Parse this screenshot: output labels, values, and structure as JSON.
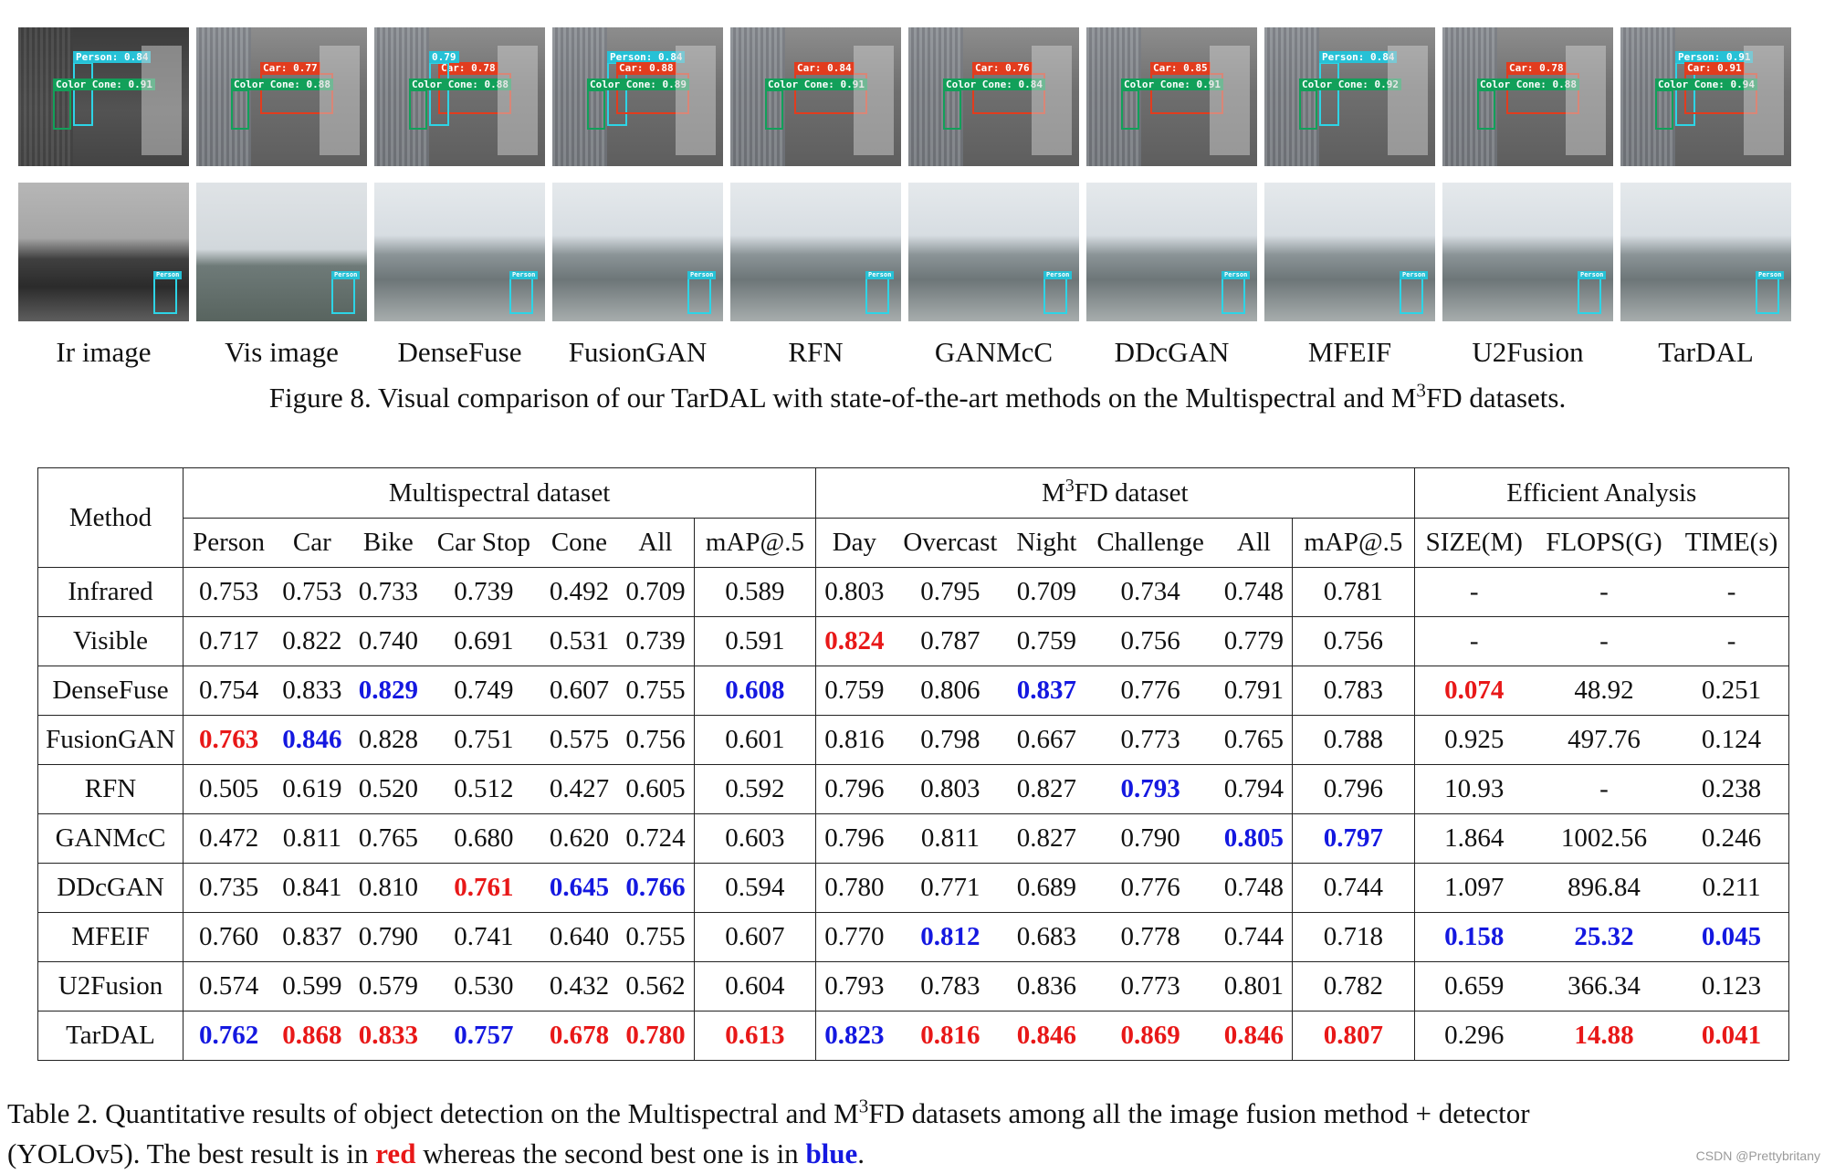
{
  "figure": {
    "method_labels": [
      "Ir image",
      "Vis image",
      "DenseFuse",
      "FusionGAN",
      "RFN",
      "GANMcC",
      "DDcGAN",
      "MFEIF",
      "U2Fusion",
      "TarDAL"
    ],
    "row1_detections": [
      [
        {
          "cls": "cyan",
          "text": "Person: 0.84"
        },
        {
          "cls": "green",
          "text": "Color Cone: 0.91"
        }
      ],
      [
        {
          "cls": "red",
          "text": "Car: 0.77"
        },
        {
          "cls": "green",
          "text": "Color Cone: 0.88"
        }
      ],
      [
        {
          "cls": "red",
          "text": "Car: 0.78"
        },
        {
          "cls": "cyan",
          "text": "0.79"
        },
        {
          "cls": "green",
          "text": "Color Cone: 0.88"
        }
      ],
      [
        {
          "cls": "cyan",
          "text": "Person: 0.84"
        },
        {
          "cls": "red",
          "text": "Car: 0.88"
        },
        {
          "cls": "green",
          "text": "Color Cone: 0.89"
        }
      ],
      [
        {
          "cls": "red",
          "text": "Car: 0.84"
        },
        {
          "cls": "green",
          "text": "Color Cone: 0.91"
        }
      ],
      [
        {
          "cls": "red",
          "text": "Car: 0.76"
        },
        {
          "cls": "green",
          "text": "Color Cone: 0.84"
        }
      ],
      [
        {
          "cls": "red",
          "text": "Car: 0.85"
        },
        {
          "cls": "green",
          "text": "Color Cone: 0.91"
        }
      ],
      [
        {
          "cls": "cyan",
          "text": "Person: 0.84"
        },
        {
          "cls": "green",
          "text": "Color Cone: 0.92"
        }
      ],
      [
        {
          "cls": "red",
          "text": "Car: 0.78"
        },
        {
          "cls": "green",
          "text": "Color Cone: 0.88"
        }
      ],
      [
        {
          "cls": "cyan",
          "text": "Person: 0.91"
        },
        {
          "cls": "red",
          "text": "Car: 0.91"
        },
        {
          "cls": "green",
          "text": "Color Cone: 0.94"
        }
      ]
    ],
    "row2_detection_label": "Person",
    "caption_prefix": "Figure 8. Visual comparison of our TarDAL with state-of-the-art methods on the Multispectral and M",
    "caption_sup": "3",
    "caption_suffix": "FD datasets."
  },
  "table": {
    "method_header": "Method",
    "group_multispectral": "Multispectral dataset",
    "group_m3fd_prefix": "M",
    "group_m3fd_sup": "3",
    "group_m3fd_suffix": "FD dataset",
    "group_efficient": "Efficient Analysis",
    "columns": [
      "Person",
      "Car",
      "Bike",
      "Car Stop",
      "Cone",
      "All",
      "mAP@.5",
      "Day",
      "Overcast",
      "Night",
      "Challenge",
      "All",
      "mAP@.5",
      "SIZE(M)",
      "FLOPS(G)",
      "TIME(s)"
    ],
    "rows": [
      {
        "method": "Infrared",
        "values": [
          "0.753",
          "0.753",
          "0.733",
          "0.739",
          "0.492",
          "0.709",
          "0.589",
          "0.803",
          "0.795",
          "0.709",
          "0.734",
          "0.748",
          "0.781",
          "-",
          "-",
          "-"
        ]
      },
      {
        "method": "Visible",
        "values": [
          "0.717",
          "0.822",
          "0.740",
          "0.691",
          "0.531",
          "0.739",
          "0.591",
          "0.824",
          "0.787",
          "0.759",
          "0.756",
          "0.779",
          "0.756",
          "-",
          "-",
          "-"
        ]
      },
      {
        "method": "DenseFuse",
        "values": [
          "0.754",
          "0.833",
          "0.829",
          "0.749",
          "0.607",
          "0.755",
          "0.608",
          "0.759",
          "0.806",
          "0.837",
          "0.776",
          "0.791",
          "0.783",
          "0.074",
          "48.92",
          "0.251"
        ]
      },
      {
        "method": "FusionGAN",
        "values": [
          "0.763",
          "0.846",
          "0.828",
          "0.751",
          "0.575",
          "0.756",
          "0.601",
          "0.816",
          "0.798",
          "0.667",
          "0.773",
          "0.765",
          "0.788",
          "0.925",
          "497.76",
          "0.124"
        ]
      },
      {
        "method": "RFN",
        "values": [
          "0.505",
          "0.619",
          "0.520",
          "0.512",
          "0.427",
          "0.605",
          "0.592",
          "0.796",
          "0.803",
          "0.827",
          "0.793",
          "0.794",
          "0.796",
          "10.93",
          "-",
          "0.238"
        ]
      },
      {
        "method": "GANMcC",
        "values": [
          "0.472",
          "0.811",
          "0.765",
          "0.680",
          "0.620",
          "0.724",
          "0.603",
          "0.796",
          "0.811",
          "0.827",
          "0.790",
          "0.805",
          "0.797",
          "1.864",
          "1002.56",
          "0.246"
        ]
      },
      {
        "method": "DDcGAN",
        "values": [
          "0.735",
          "0.841",
          "0.810",
          "0.761",
          "0.645",
          "0.766",
          "0.594",
          "0.780",
          "0.771",
          "0.689",
          "0.776",
          "0.748",
          "0.744",
          "1.097",
          "896.84",
          "0.211"
        ]
      },
      {
        "method": "MFEIF",
        "values": [
          "0.760",
          "0.837",
          "0.790",
          "0.741",
          "0.640",
          "0.755",
          "0.607",
          "0.770",
          "0.812",
          "0.683",
          "0.778",
          "0.744",
          "0.718",
          "0.158",
          "25.32",
          "0.045"
        ]
      },
      {
        "method": "U2Fusion",
        "values": [
          "0.574",
          "0.599",
          "0.579",
          "0.530",
          "0.432",
          "0.562",
          "0.604",
          "0.793",
          "0.783",
          "0.836",
          "0.773",
          "0.801",
          "0.782",
          "0.659",
          "366.34",
          "0.123"
        ]
      },
      {
        "method": "TarDAL",
        "values": [
          "0.762",
          "0.868",
          "0.833",
          "0.757",
          "0.678",
          "0.780",
          "0.613",
          "0.823",
          "0.816",
          "0.846",
          "0.869",
          "0.846",
          "0.807",
          "0.296",
          "14.88",
          "0.041"
        ]
      }
    ],
    "highlight": [
      {
        "row": 1,
        "col": 7,
        "rank": "best"
      },
      {
        "row": 2,
        "col": 2,
        "rank": "second"
      },
      {
        "row": 2,
        "col": 6,
        "rank": "second"
      },
      {
        "row": 2,
        "col": 9,
        "rank": "second"
      },
      {
        "row": 2,
        "col": 13,
        "rank": "best"
      },
      {
        "row": 3,
        "col": 0,
        "rank": "best"
      },
      {
        "row": 3,
        "col": 1,
        "rank": "second"
      },
      {
        "row": 4,
        "col": 10,
        "rank": "second"
      },
      {
        "row": 5,
        "col": 11,
        "rank": "second"
      },
      {
        "row": 5,
        "col": 12,
        "rank": "second"
      },
      {
        "row": 6,
        "col": 3,
        "rank": "best"
      },
      {
        "row": 6,
        "col": 4,
        "rank": "second"
      },
      {
        "row": 6,
        "col": 5,
        "rank": "second"
      },
      {
        "row": 7,
        "col": 8,
        "rank": "second"
      },
      {
        "row": 7,
        "col": 13,
        "rank": "second"
      },
      {
        "row": 7,
        "col": 14,
        "rank": "second"
      },
      {
        "row": 7,
        "col": 15,
        "rank": "second"
      },
      {
        "row": 9,
        "col": 0,
        "rank": "second"
      },
      {
        "row": 9,
        "col": 1,
        "rank": "best"
      },
      {
        "row": 9,
        "col": 2,
        "rank": "best"
      },
      {
        "row": 9,
        "col": 3,
        "rank": "second"
      },
      {
        "row": 9,
        "col": 4,
        "rank": "best"
      },
      {
        "row": 9,
        "col": 5,
        "rank": "best"
      },
      {
        "row": 9,
        "col": 6,
        "rank": "best"
      },
      {
        "row": 9,
        "col": 7,
        "rank": "second"
      },
      {
        "row": 9,
        "col": 8,
        "rank": "best"
      },
      {
        "row": 9,
        "col": 9,
        "rank": "best"
      },
      {
        "row": 9,
        "col": 10,
        "rank": "best"
      },
      {
        "row": 9,
        "col": 11,
        "rank": "best"
      },
      {
        "row": 9,
        "col": 12,
        "rank": "best"
      },
      {
        "row": 9,
        "col": 14,
        "rank": "best"
      },
      {
        "row": 9,
        "col": 15,
        "rank": "best"
      }
    ],
    "colors": {
      "best": "#e81818",
      "second": "#1418e0"
    }
  },
  "caption2": {
    "p1": "Table 2.  Quantitative results of object detection on the Multispectral and M",
    "sup": "3",
    "p2": "FD datasets among all the image fusion method + detector",
    "p3": "(YOLOv5). The best result is in ",
    "red_word": "red",
    "p4": " whereas the second best one is in ",
    "blue_word": "blue",
    "p5": "."
  },
  "watermark": "CSDN @Prettybritany"
}
